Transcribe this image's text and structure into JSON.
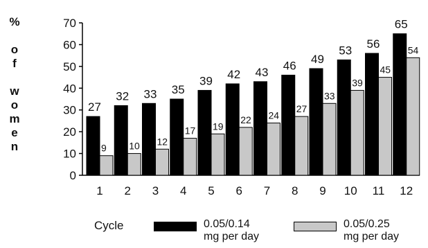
{
  "chart_data": {
    "type": "bar",
    "ylabel": "% of women",
    "xlabel": "Cycle",
    "categories": [
      "1",
      "2",
      "3",
      "4",
      "5",
      "6",
      "7",
      "8",
      "9",
      "10",
      "11",
      "12"
    ],
    "ylim": [
      0,
      70
    ],
    "yticks": [
      0,
      10,
      20,
      30,
      40,
      50,
      60,
      70
    ],
    "grid": false,
    "legend_placement": "bottom",
    "series": [
      {
        "name": "0.05/0.14 mg per day",
        "legend_line1": "0.05/0.14",
        "legend_line2": "mg per day",
        "color": "#000000",
        "values": [
          27,
          32,
          33,
          35,
          39,
          42,
          43,
          46,
          49,
          53,
          56,
          65
        ]
      },
      {
        "name": "0.05/0.25 mg per day",
        "legend_line1": "0.05/0.25",
        "legend_line2": "mg per day",
        "color": "#c8c8c8",
        "values": [
          9,
          10,
          12,
          17,
          19,
          22,
          24,
          27,
          33,
          39,
          45,
          54
        ]
      }
    ]
  }
}
